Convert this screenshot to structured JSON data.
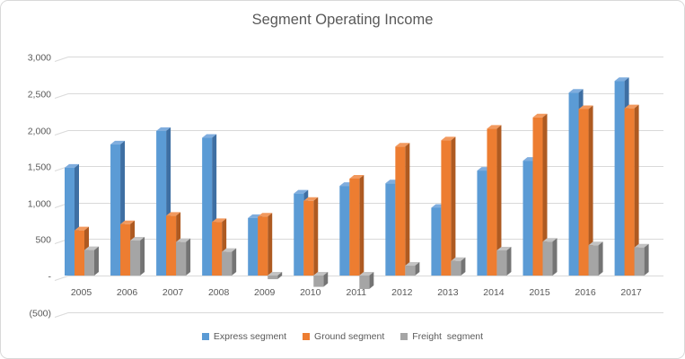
{
  "chart_data": {
    "type": "bar",
    "subtype": "3d-clustered-column",
    "title": "Segment Operating Income",
    "categories": [
      "2005",
      "2006",
      "2007",
      "2008",
      "2009",
      "2010",
      "2011",
      "2012",
      "2013",
      "2014",
      "2015",
      "2016",
      "2017"
    ],
    "series": [
      {
        "name": "Express segment",
        "color": "#5B9BD5",
        "top_color": "#7FADDE",
        "side_color": "#3E6FA3",
        "values": [
          1480,
          1800,
          1985,
          1890,
          790,
          1125,
          1230,
          1265,
          930,
          1440,
          1575,
          2510,
          2670
        ]
      },
      {
        "name": "Ground segment",
        "color": "#ED7D31",
        "top_color": "#F2995E",
        "side_color": "#AE5A21",
        "values": [
          620,
          705,
          820,
          735,
          810,
          1025,
          1330,
          1770,
          1855,
          2015,
          2170,
          2285,
          2295
        ]
      },
      {
        "name": "Freight  segment",
        "color": "#A5A5A5",
        "top_color": "#C3C3C3",
        "side_color": "#747474",
        "values": [
          350,
          480,
          460,
          325,
          -50,
          -155,
          -185,
          135,
          200,
          345,
          465,
          415,
          385
        ]
      }
    ],
    "ylim": [
      -500,
      3000
    ],
    "ytick_step": 500,
    "ytick_labels": [
      "3,000",
      "2,500",
      "2,000",
      "1,500",
      "1,000",
      "500",
      "-",
      "(500)"
    ],
    "grid": true,
    "legend_position": "bottom"
  },
  "colors": {
    "gridline": "#D9D9D9",
    "axis_text": "#595959",
    "title_text": "#595959",
    "chart_border": "#D9D9D9",
    "background": "#FFFFFF"
  }
}
